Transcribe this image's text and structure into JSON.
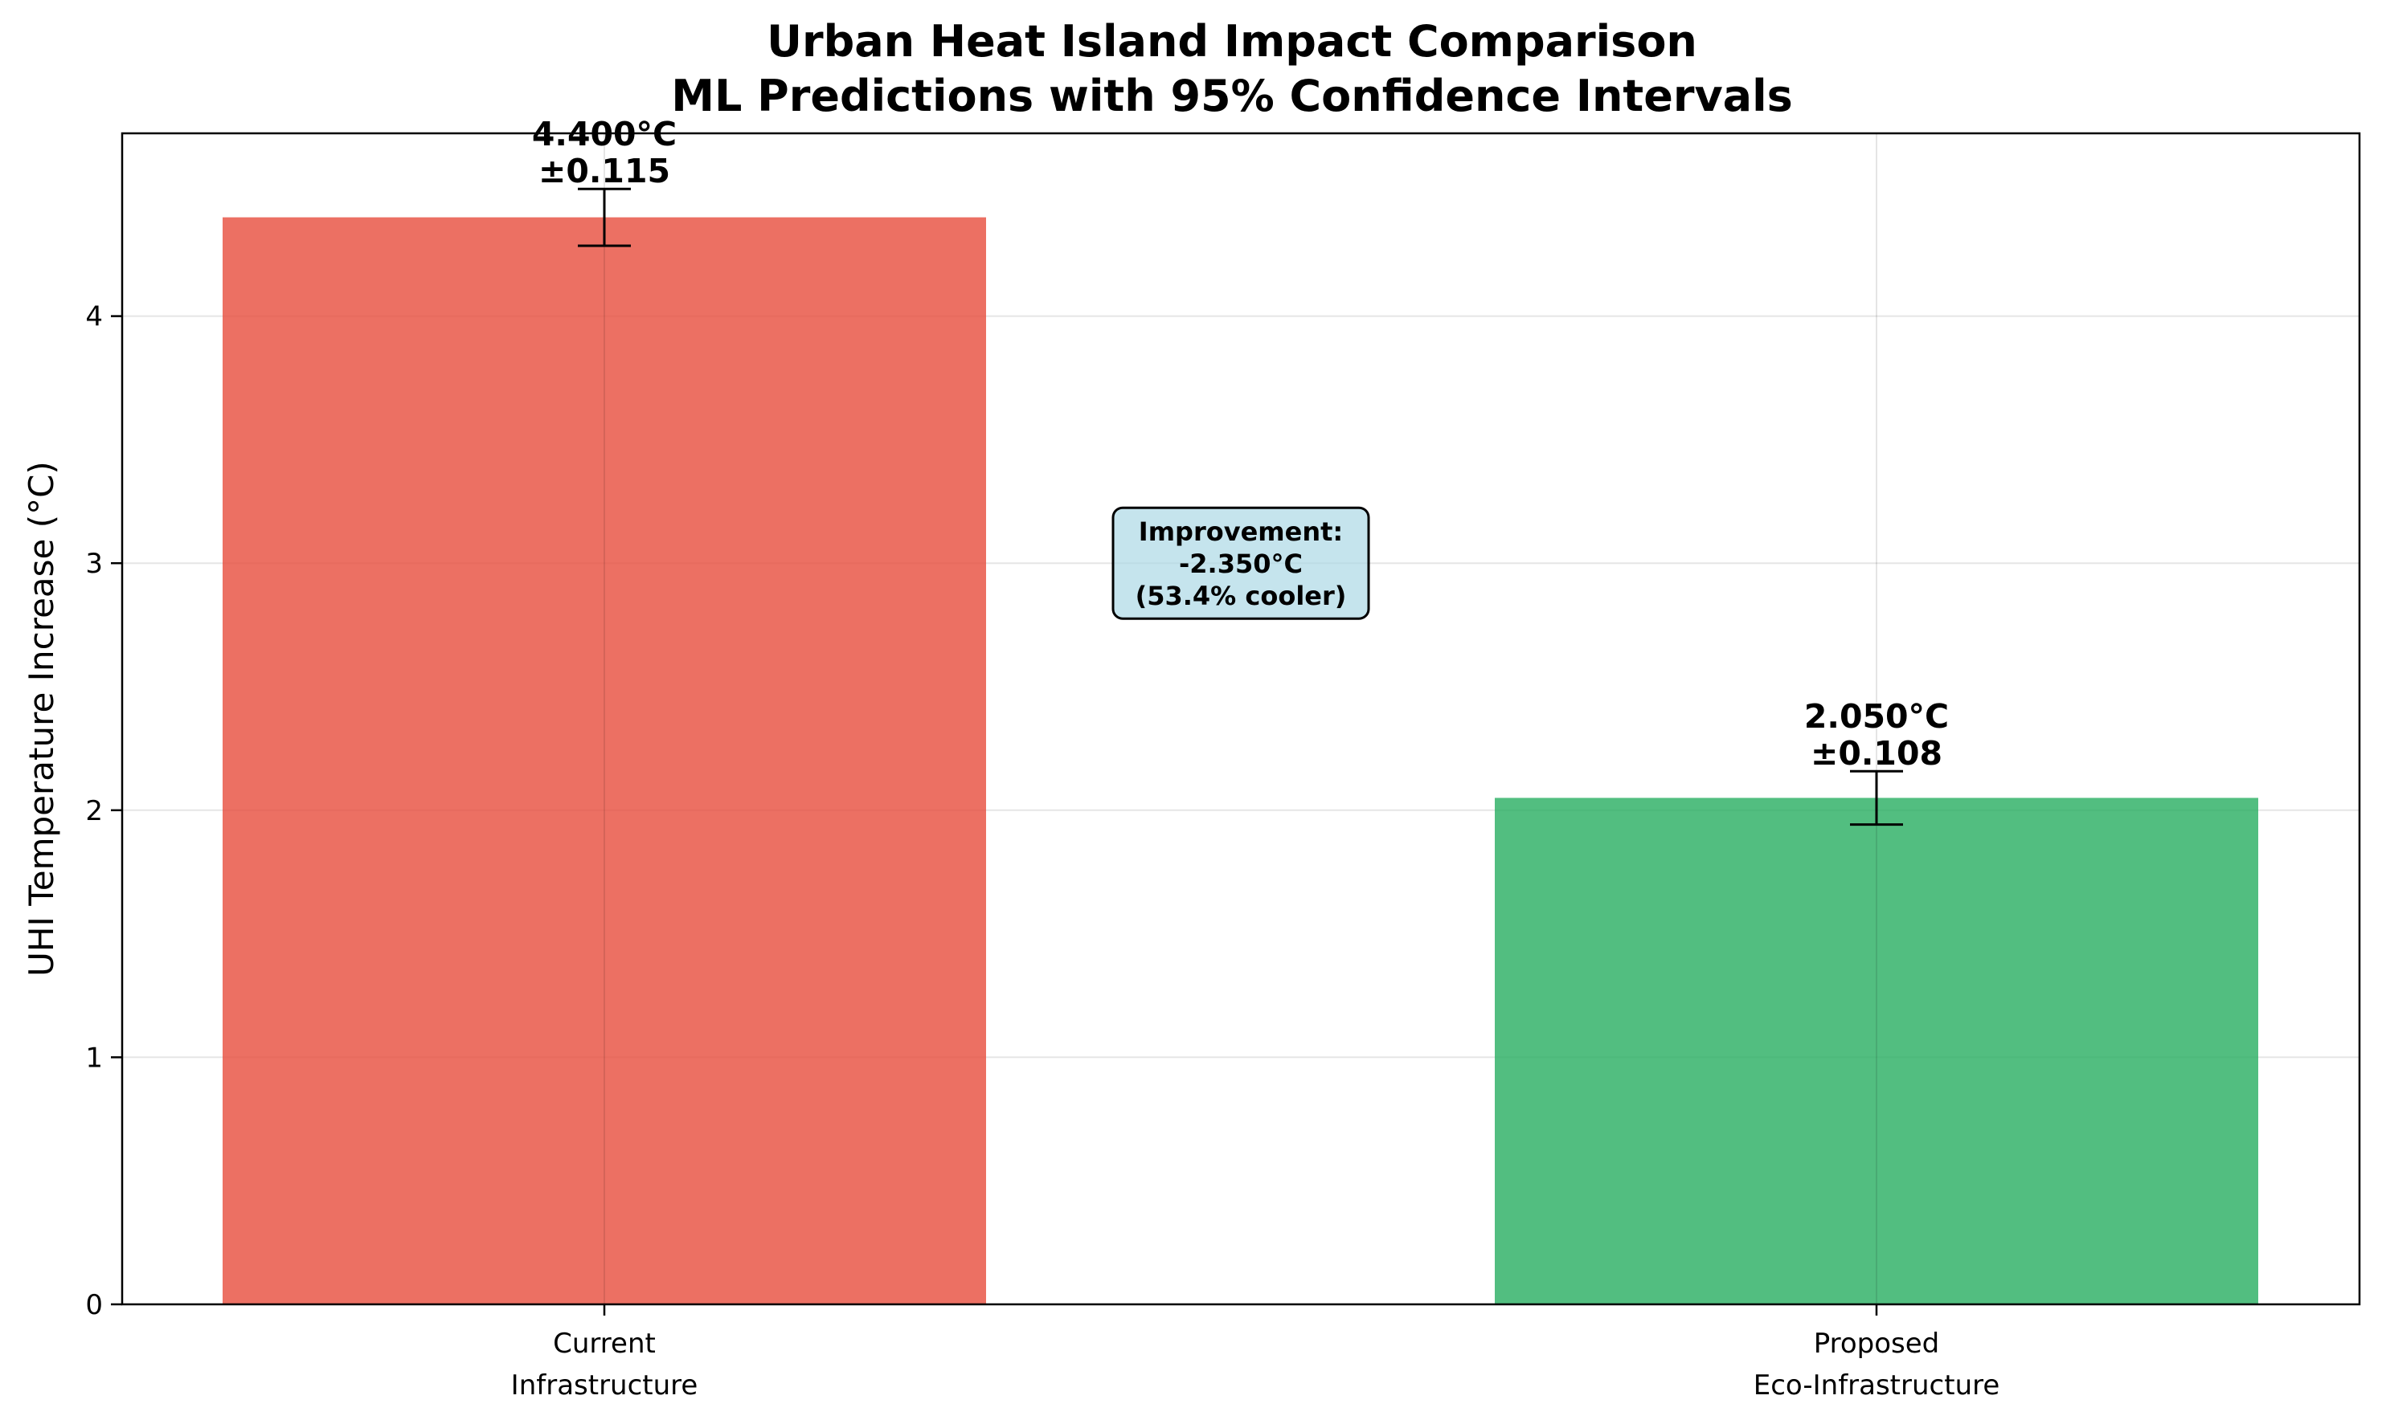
{
  "chart_data": {
    "type": "bar",
    "title": "Urban Heat Island Impact Comparison",
    "subtitle": "ML Predictions with 95% Confidence Intervals",
    "xlabel": "",
    "ylabel": "UHI Temperature Increase (°C)",
    "ylim": [
      0,
      4.74
    ],
    "yticks": [
      0,
      1,
      2,
      3,
      4
    ],
    "grid": true,
    "categories": [
      "Current\nInfrastructure",
      "Proposed\nEco-Infrastructure"
    ],
    "values": [
      4.4,
      2.05
    ],
    "errors": [
      0.115,
      0.108
    ],
    "colors": [
      "#e74c3c",
      "#27ae60"
    ],
    "data_labels": [
      [
        "4.400°C",
        "±0.115"
      ],
      [
        "2.050°C",
        "±0.108"
      ]
    ],
    "annotation": {
      "lines": [
        "Improvement:",
        "-2.350°C",
        "(53.4% cooler)"
      ],
      "box_color": "#add8e6",
      "y_value": 3.0
    }
  }
}
